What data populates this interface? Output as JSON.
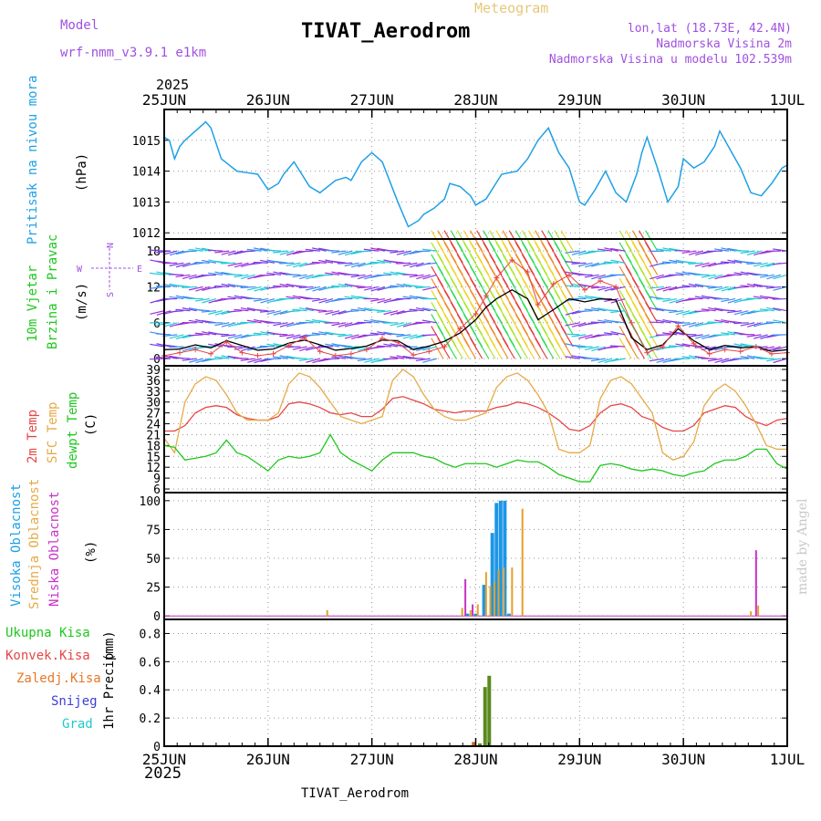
{
  "header": {
    "model_label": "Model",
    "model_name": "wrf-nmm_v3.9.1  e1km",
    "meteogram_label": "Meteogram",
    "station": "TIVAT_Aerodrom",
    "lonlat": "lon,lat (18.73E, 42.4N)",
    "elevation": "Nadmorska Visina 2m",
    "model_elevation": "Nadmorska Visina u modelu 102.539m",
    "footer_station": "TIVAT_Aerodrom",
    "credit": "made by Angel"
  },
  "time_axis": {
    "year": "2025",
    "labels": [
      "25JUN",
      "26JUN",
      "27JUN",
      "28JUN",
      "29JUN",
      "30JUN",
      "1JUL"
    ]
  },
  "colors": {
    "pressure": "#1ea0e6",
    "temp2m": "#e64646",
    "sfc_temp": "#e6aa46",
    "dewpt": "#1ec81e",
    "high_cloud": "#1e96e6",
    "mid_cloud": "#e6a028",
    "low_cloud": "#c832c8",
    "precip": "#5a8a1e",
    "wind_speed": "#000000",
    "wind_gust": "#e64646"
  },
  "chart_data": [
    {
      "type": "line",
      "panel": "pressure",
      "ylabel_main": "Pritisak na nivou mora",
      "ylabel_unit": "(hPa)",
      "ylim": [
        1011.8,
        1016.0
      ],
      "yticks": [
        1012,
        1013,
        1014,
        1015
      ],
      "grid": true,
      "x_days": [
        0,
        0.05,
        0.1,
        0.15,
        0.2,
        0.3,
        0.4,
        0.45,
        0.5,
        0.55,
        0.7,
        0.8,
        0.9,
        1.0,
        1.05,
        1.1,
        1.15,
        1.25,
        1.4,
        1.5,
        1.65,
        1.75,
        1.8,
        1.9,
        2.0,
        2.1,
        2.25,
        2.35,
        2.45,
        2.5,
        2.6,
        2.7,
        2.75,
        2.85,
        2.95,
        3.0,
        3.1,
        3.25,
        3.4,
        3.5,
        3.6,
        3.7,
        3.8,
        3.9,
        4.0,
        4.05,
        4.15,
        4.25,
        4.35,
        4.45,
        4.55,
        4.6,
        4.65,
        4.75,
        4.85,
        4.95,
        5.0,
        5.1,
        5.2,
        5.3,
        5.35,
        5.45,
        5.55,
        5.65,
        5.75,
        5.85,
        5.95,
        6.0
      ],
      "series": [
        {
          "values": [
            1015.1,
            1015.0,
            1014.4,
            1014.8,
            1015.0,
            1015.3,
            1015.6,
            1015.4,
            1014.9,
            1014.4,
            1014.0,
            1013.95,
            1013.9,
            1013.4,
            1013.5,
            1013.6,
            1013.9,
            1014.3,
            1013.5,
            1013.3,
            1013.7,
            1013.8,
            1013.7,
            1014.3,
            1014.6,
            1014.3,
            1013.0,
            1012.2,
            1012.4,
            1012.6,
            1012.8,
            1013.1,
            1013.6,
            1013.5,
            1013.2,
            1012.9,
            1013.1,
            1013.9,
            1014.0,
            1014.4,
            1015.0,
            1015.4,
            1014.6,
            1014.1,
            1013.0,
            1012.9,
            1013.4,
            1014.0,
            1013.3,
            1013.0,
            1013.9,
            1014.6,
            1015.1,
            1014.1,
            1013.0,
            1013.5,
            1014.4,
            1014.1,
            1014.3,
            1014.8,
            1015.3,
            1014.7,
            1014.1,
            1013.3,
            1013.2,
            1013.6,
            1014.1,
            1014.2
          ]
        }
      ]
    },
    {
      "type": "line",
      "panel": "wind",
      "ylabel_main": "10m Vjetar",
      "ylabel_sub": "Brzina i Pravac",
      "ylabel_unit": "(m/s)",
      "direction_legend": [
        "N",
        "W",
        "E",
        "S"
      ],
      "ylim": [
        -1.2,
        20
      ],
      "yticks": [
        0,
        6,
        12,
        18
      ],
      "grid": true,
      "x_days": [
        0,
        0.15,
        0.3,
        0.45,
        0.6,
        0.75,
        0.9,
        1.05,
        1.2,
        1.35,
        1.5,
        1.65,
        1.8,
        1.95,
        2.1,
        2.25,
        2.4,
        2.55,
        2.7,
        2.85,
        3.0,
        3.1,
        3.2,
        3.35,
        3.5,
        3.6,
        3.75,
        3.9,
        4.05,
        4.2,
        4.35,
        4.5,
        4.65,
        4.8,
        4.95,
        5.1,
        5.25,
        5.4,
        5.55,
        5.7,
        5.85,
        6.0
      ],
      "series": [
        {
          "name": "speed",
          "values": [
            1.5,
            1.6,
            2.3,
            1.8,
            3.0,
            2.2,
            1.4,
            1.6,
            2.6,
            3.1,
            2.3,
            1.4,
            1.7,
            2.1,
            3.1,
            3.0,
            1.5,
            2.1,
            2.9,
            4.3,
            6.5,
            8.6,
            10.0,
            11.5,
            10.0,
            6.5,
            8.2,
            10.0,
            9.5,
            10.0,
            9.8,
            3.5,
            1.5,
            2.3,
            5.0,
            3.0,
            1.5,
            2.2,
            1.8,
            2.0,
            1.2,
            1.5
          ]
        },
        {
          "name": "gust",
          "values": [
            0.5,
            1.0,
            1.5,
            0.8,
            2.8,
            1.0,
            0.5,
            0.8,
            2.2,
            3.5,
            1.2,
            0.5,
            0.8,
            1.5,
            3.4,
            2.7,
            0.6,
            1.2,
            2.0,
            5.0,
            7.5,
            10.5,
            13.5,
            16.5,
            14.5,
            9.0,
            12.5,
            14.0,
            11.5,
            13.0,
            12.0,
            6.0,
            1.0,
            2.0,
            5.5,
            2.5,
            0.8,
            1.5,
            1.2,
            2.0,
            0.8,
            1.0
          ]
        }
      ]
    },
    {
      "type": "line",
      "panel": "temperature",
      "ylabel_main": "2m Temp",
      "ylabel_sub": "SFC Temp",
      "ylabel_sub2": "dewpt Temp",
      "ylabel_unit": "(C)",
      "ylim": [
        5,
        40
      ],
      "yticks": [
        6,
        9,
        12,
        15,
        18,
        21,
        24,
        27,
        30,
        33,
        36,
        39
      ],
      "grid": true,
      "x_days": [
        0,
        0.1,
        0.2,
        0.3,
        0.4,
        0.5,
        0.6,
        0.7,
        0.8,
        0.9,
        1.0,
        1.1,
        1.2,
        1.3,
        1.4,
        1.5,
        1.6,
        1.7,
        1.8,
        1.9,
        2.0,
        2.1,
        2.2,
        2.3,
        2.4,
        2.5,
        2.6,
        2.7,
        2.8,
        2.9,
        3.0,
        3.1,
        3.2,
        3.3,
        3.4,
        3.5,
        3.6,
        3.7,
        3.8,
        3.9,
        4.0,
        4.1,
        4.2,
        4.3,
        4.4,
        4.5,
        4.6,
        4.7,
        4.8,
        4.9,
        5.0,
        5.1,
        5.2,
        5.3,
        5.4,
        5.5,
        5.6,
        5.7,
        5.8,
        5.9,
        6.0
      ],
      "series": [
        {
          "name": "2m Temp",
          "values": [
            22,
            22,
            23.5,
            27,
            28.5,
            29,
            28.5,
            26.5,
            25.5,
            25,
            25,
            26,
            29.5,
            30,
            29.5,
            28.5,
            27,
            26.5,
            27,
            26,
            26,
            28,
            31,
            31.5,
            30.5,
            29.5,
            28,
            27.5,
            27,
            27.5,
            27.5,
            27.5,
            28.5,
            29,
            30,
            29.5,
            28.5,
            27,
            25,
            22.5,
            22,
            23.5,
            27,
            29,
            29.5,
            28.5,
            26,
            25,
            23,
            22,
            22,
            23.5,
            27,
            28,
            29,
            28.5,
            26,
            24.5,
            23.5,
            25,
            25.5
          ]
        },
        {
          "name": "SFC Temp",
          "values": [
            20,
            16,
            30,
            35,
            37,
            36,
            32,
            27,
            25,
            25,
            25,
            27,
            35,
            38,
            37,
            34,
            30,
            26,
            25,
            24,
            25,
            26,
            36,
            39,
            37,
            32,
            28,
            26,
            25,
            25,
            26,
            27,
            34,
            37,
            38,
            36,
            32,
            27,
            17,
            16,
            16,
            18,
            31,
            36,
            37,
            35,
            31,
            27,
            16,
            14,
            15,
            19,
            29,
            33,
            35,
            33,
            29,
            24,
            18,
            17,
            17
          ]
        },
        {
          "name": "dewpt Temp",
          "values": [
            18,
            17.5,
            14,
            14.5,
            15,
            16,
            19.5,
            16,
            15,
            13,
            11,
            14,
            15,
            14.5,
            15,
            16,
            21,
            16,
            14,
            12.5,
            11,
            14,
            16,
            16,
            16,
            15,
            14.5,
            13,
            12,
            13,
            13,
            13,
            12,
            13,
            14,
            13.5,
            13.5,
            12,
            10,
            9,
            8,
            8,
            12.5,
            13,
            12.5,
            11.5,
            11,
            11.5,
            11,
            10,
            9.5,
            10.5,
            11,
            13,
            14,
            14,
            15,
            17,
            17,
            13,
            11.5
          ]
        }
      ]
    },
    {
      "type": "bar",
      "panel": "cloud",
      "ylabel_main": "Visoka Oblacnost",
      "ylabel_sub": "Srednja Oblacnost",
      "ylabel_sub2": "Niska Oblacnost",
      "ylabel_unit": "(%)",
      "ylim": [
        -3,
        107
      ],
      "yticks": [
        0,
        25,
        50,
        75,
        100
      ],
      "grid": true,
      "series": [
        {
          "name": "Visoka Oblacnost",
          "x_days": [
            2.92,
            2.96,
            3.0,
            3.04,
            3.08,
            3.12,
            3.16
          ],
          "values": [
            2,
            0,
            2,
            0,
            27,
            0,
            72
          ]
        },
        {
          "name": "Visoka Oblacnost b",
          "x_days": [
            3.2,
            3.24,
            3.28,
            3.32
          ],
          "values": [
            98,
            100,
            100,
            2
          ]
        },
        {
          "name": "Srednja Oblacnost",
          "x_days": [
            1.57,
            2.87,
            2.95,
            3.02,
            3.1,
            3.14,
            3.18,
            3.22,
            3.27,
            3.35,
            3.45,
            5.65,
            5.72
          ],
          "values": [
            5,
            7,
            5,
            10,
            38,
            26,
            30,
            40,
            42,
            42,
            93,
            4,
            9
          ]
        },
        {
          "name": "Niska Oblacnost",
          "x_days": [
            2.9,
            2.97,
            5.7
          ],
          "values": [
            32,
            10,
            57
          ]
        }
      ]
    },
    {
      "type": "bar",
      "panel": "precip",
      "ylabel_main": "1hr Precip",
      "ylabel_unit": "(mm)",
      "legend": [
        "Ukupna Kisa",
        "Konvek.Kisa",
        "Zaledj.Kisa",
        "Snijeg",
        "Grad"
      ],
      "ylim": [
        0,
        0.9
      ],
      "yticks": [
        0,
        0.2,
        0.4,
        0.6,
        0.8
      ],
      "grid": true,
      "series": [
        {
          "name": "Ukupna Kisa",
          "x_days": [
            2.98,
            3.04,
            3.09,
            3.13
          ],
          "values": [
            0.03,
            0.02,
            0.42,
            0.5
          ]
        }
      ]
    }
  ]
}
